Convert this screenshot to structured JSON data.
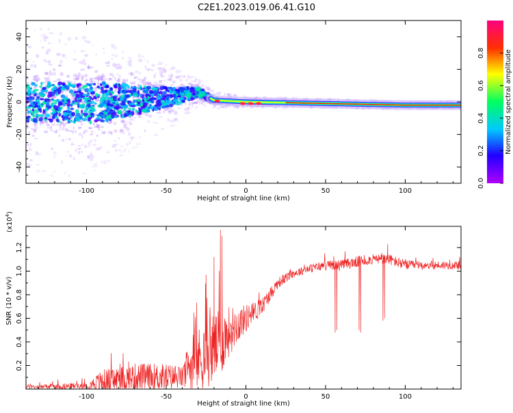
{
  "title": "C2E1.2023.019.06.41.G10",
  "chart_data": [
    {
      "type": "heatmap",
      "xlabel": "Height of straight line (km)",
      "ylabel": "Frequency (Hz)",
      "xlim": [
        -138,
        135
      ],
      "ylim": [
        -50,
        50
      ],
      "xticks": [
        -100,
        -50,
        0,
        50,
        100
      ],
      "yticks": [
        -40,
        -20,
        0,
        20,
        40
      ],
      "colorbar": {
        "label": "Normalized spectral amplitude",
        "range": [
          0,
          1
        ],
        "ticks": [
          0.0,
          0.2,
          0.4,
          0.6,
          0.8
        ],
        "colormap": [
          "#b000ff",
          "#2000ff",
          "#00c8ff",
          "#00ff60",
          "#ffff00",
          "#ff3000",
          "#ff0080"
        ]
      },
      "ridge": {
        "description_points": [
          [
            -138,
            0
          ],
          [
            -100,
            -1
          ],
          [
            -60,
            2
          ],
          [
            -40,
            4
          ],
          [
            -30,
            6
          ],
          [
            -20,
            1
          ],
          [
            0,
            0
          ],
          [
            50,
            -1
          ],
          [
            100,
            -2
          ],
          [
            135,
            -2
          ]
        ],
        "scatter_spread_hz": [
          [
            -138,
            45
          ],
          [
            -100,
            45
          ],
          [
            -60,
            25
          ],
          [
            -40,
            15
          ],
          [
            -25,
            6
          ],
          [
            0,
            3
          ],
          [
            135,
            2
          ]
        ]
      }
    },
    {
      "type": "line",
      "xlabel": "Height of straight line (km)",
      "ylabel": "SNR (10 * v/v)",
      "yscale_label": "(x10",
      "yscale_exp": "4",
      "xlim": [
        -138,
        135
      ],
      "ylim": [
        0,
        1.38
      ],
      "xticks": [
        -100,
        -50,
        0,
        50,
        100
      ],
      "yticks": [
        0.2,
        0.4,
        0.6,
        0.8,
        1.0,
        1.2
      ],
      "color": "#ee2020",
      "envelope": {
        "x": [
          -138,
          -120,
          -100,
          -95,
          -90,
          -70,
          -50,
          -40,
          -35,
          -30,
          -25,
          -20,
          -15,
          -10,
          -5,
          0,
          5,
          10,
          15,
          20,
          30,
          40,
          50,
          60,
          70,
          80,
          90,
          100,
          110,
          120,
          135
        ],
        "base": [
          0.02,
          0.02,
          0.03,
          0.05,
          0.06,
          0.1,
          0.1,
          0.1,
          0.2,
          0.25,
          0.3,
          0.35,
          0.4,
          0.5,
          0.55,
          0.6,
          0.65,
          0.7,
          0.8,
          0.9,
          0.98,
          1.02,
          1.05,
          1.05,
          1.08,
          1.1,
          1.1,
          1.05,
          1.05,
          1.05,
          1.05
        ],
        "noise": [
          0.03,
          0.04,
          0.05,
          0.1,
          0.18,
          0.2,
          0.2,
          0.15,
          0.4,
          0.45,
          0.5,
          0.5,
          0.45,
          0.35,
          0.25,
          0.2,
          0.15,
          0.12,
          0.1,
          0.08,
          0.06,
          0.06,
          0.07,
          0.08,
          0.08,
          0.07,
          0.08,
          0.07,
          0.06,
          0.06,
          0.06
        ]
      },
      "spikes": [
        [
          -16,
          1.35
        ],
        [
          -15,
          1.3
        ],
        [
          -20,
          1.12
        ],
        [
          -25,
          0.97
        ],
        [
          89,
          1.23
        ]
      ],
      "dips": [
        [
          56,
          0.48
        ],
        [
          57,
          0.5
        ],
        [
          71,
          0.5
        ],
        [
          72,
          0.48
        ],
        [
          86,
          0.58
        ],
        [
          87,
          0.6
        ]
      ]
    }
  ]
}
